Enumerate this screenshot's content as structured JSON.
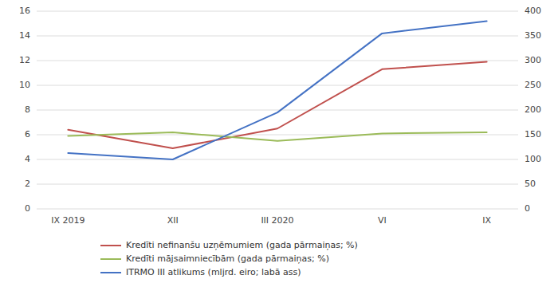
{
  "chart_data": {
    "type": "line",
    "categories": [
      "IX 2019",
      "XII",
      "III 2020",
      "VI",
      "IX"
    ],
    "series": [
      {
        "name": "Kredīti nefinanšu uzņēmumiem (gada pārmaiņas; %)",
        "color": "#c0504d",
        "values": [
          6.4,
          4.9,
          6.5,
          11.3,
          11.9
        ]
      },
      {
        "name": "Kredīti mājsaimniecībām (gada pārmaiņas; %)",
        "color": "#9bbb59",
        "values": [
          5.9,
          6.2,
          5.5,
          6.1,
          6.2
        ]
      },
      {
        "name": "ITRMO III atlikums (mljrd. eiro; labā ass)",
        "color": "#4472c4",
        "values": [
          113,
          100,
          195,
          355,
          380
        ],
        "axis": "y2"
      }
    ],
    "ylim": [
      0,
      16
    ],
    "yticks": [
      0,
      2,
      4,
      6,
      8,
      10,
      12,
      14,
      16
    ],
    "y2lim": [
      0,
      400
    ],
    "y2ticks": [
      0,
      50,
      100,
      150,
      200,
      250,
      300,
      350,
      400
    ],
    "grid": true,
    "legend": "bottom"
  }
}
